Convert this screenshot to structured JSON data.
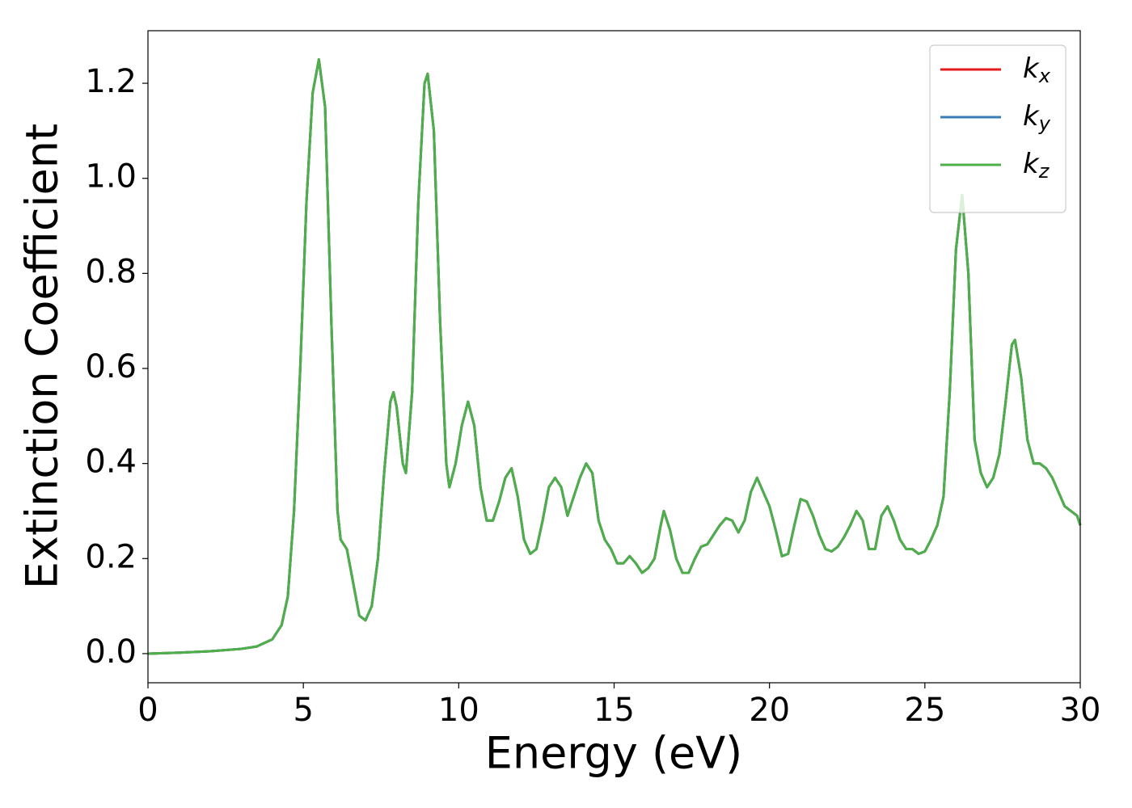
{
  "chart_data": {
    "type": "line",
    "xlabel": "Energy (eV)",
    "ylabel": "Extinction Coefficient",
    "x": [
      0,
      1,
      2,
      3,
      3.5,
      4,
      4.3,
      4.5,
      4.7,
      4.9,
      5.1,
      5.3,
      5.5,
      5.7,
      5.9,
      6.1,
      6.2,
      6.4,
      6.6,
      6.8,
      7.0,
      7.2,
      7.4,
      7.6,
      7.8,
      7.9,
      8.0,
      8.2,
      8.3,
      8.5,
      8.7,
      8.9,
      9.0,
      9.2,
      9.4,
      9.6,
      9.7,
      9.9,
      10.1,
      10.3,
      10.5,
      10.7,
      10.9,
      11.1,
      11.3,
      11.5,
      11.7,
      11.9,
      12.1,
      12.3,
      12.5,
      12.7,
      12.9,
      13.1,
      13.3,
      13.5,
      13.7,
      13.9,
      14.1,
      14.3,
      14.5,
      14.7,
      14.9,
      15.1,
      15.3,
      15.5,
      15.7,
      15.9,
      16.1,
      16.3,
      16.5,
      16.6,
      16.8,
      17.0,
      17.2,
      17.4,
      17.6,
      17.8,
      18.0,
      18.2,
      18.4,
      18.6,
      18.8,
      19.0,
      19.2,
      19.4,
      19.6,
      19.8,
      20.0,
      20.2,
      20.4,
      20.6,
      20.8,
      21.0,
      21.2,
      21.4,
      21.6,
      21.8,
      22.0,
      22.2,
      22.4,
      22.6,
      22.8,
      23.0,
      23.2,
      23.4,
      23.6,
      23.8,
      24.0,
      24.2,
      24.4,
      24.6,
      24.8,
      25.0,
      25.2,
      25.4,
      25.6,
      25.8,
      26.0,
      26.2,
      26.4,
      26.6,
      26.8,
      27.0,
      27.2,
      27.4,
      27.6,
      27.8,
      27.9,
      28.1,
      28.3,
      28.5,
      28.7,
      28.9,
      29.1,
      29.3,
      29.5,
      29.7,
      29.9,
      30.0
    ],
    "series": [
      {
        "name": "kx",
        "color": "#e41a1c",
        "values": [
          0,
          0.002,
          0.005,
          0.01,
          0.015,
          0.03,
          0.06,
          0.12,
          0.3,
          0.6,
          0.95,
          1.18,
          1.25,
          1.15,
          0.7,
          0.3,
          0.24,
          0.22,
          0.15,
          0.08,
          0.07,
          0.1,
          0.2,
          0.38,
          0.53,
          0.55,
          0.52,
          0.4,
          0.38,
          0.55,
          0.95,
          1.2,
          1.22,
          1.1,
          0.7,
          0.4,
          0.35,
          0.4,
          0.48,
          0.53,
          0.48,
          0.35,
          0.28,
          0.28,
          0.32,
          0.37,
          0.39,
          0.33,
          0.24,
          0.21,
          0.22,
          0.28,
          0.35,
          0.37,
          0.35,
          0.29,
          0.33,
          0.37,
          0.4,
          0.38,
          0.28,
          0.24,
          0.22,
          0.19,
          0.19,
          0.205,
          0.19,
          0.17,
          0.18,
          0.2,
          0.27,
          0.3,
          0.26,
          0.2,
          0.17,
          0.17,
          0.2,
          0.225,
          0.23,
          0.25,
          0.27,
          0.285,
          0.28,
          0.255,
          0.28,
          0.34,
          0.37,
          0.34,
          0.31,
          0.26,
          0.205,
          0.21,
          0.27,
          0.325,
          0.32,
          0.29,
          0.25,
          0.22,
          0.215,
          0.225,
          0.245,
          0.27,
          0.3,
          0.28,
          0.22,
          0.22,
          0.29,
          0.31,
          0.28,
          0.24,
          0.22,
          0.22,
          0.21,
          0.215,
          0.24,
          0.27,
          0.33,
          0.55,
          0.85,
          0.965,
          0.8,
          0.45,
          0.38,
          0.35,
          0.37,
          0.42,
          0.53,
          0.65,
          0.66,
          0.58,
          0.45,
          0.4,
          0.4,
          0.39,
          0.37,
          0.34,
          0.31,
          0.3,
          0.29,
          0.27
        ]
      },
      {
        "name": "ky",
        "color": "#377eb8",
        "values": [
          0,
          0.002,
          0.005,
          0.01,
          0.015,
          0.03,
          0.06,
          0.12,
          0.3,
          0.6,
          0.95,
          1.18,
          1.25,
          1.15,
          0.7,
          0.3,
          0.24,
          0.22,
          0.15,
          0.08,
          0.07,
          0.1,
          0.2,
          0.38,
          0.53,
          0.55,
          0.52,
          0.4,
          0.38,
          0.55,
          0.95,
          1.2,
          1.22,
          1.1,
          0.7,
          0.4,
          0.35,
          0.4,
          0.48,
          0.53,
          0.48,
          0.35,
          0.28,
          0.28,
          0.32,
          0.37,
          0.39,
          0.33,
          0.24,
          0.21,
          0.22,
          0.28,
          0.35,
          0.37,
          0.35,
          0.29,
          0.33,
          0.37,
          0.4,
          0.38,
          0.28,
          0.24,
          0.22,
          0.19,
          0.19,
          0.205,
          0.19,
          0.17,
          0.18,
          0.2,
          0.27,
          0.3,
          0.26,
          0.2,
          0.17,
          0.17,
          0.2,
          0.225,
          0.23,
          0.25,
          0.27,
          0.285,
          0.28,
          0.255,
          0.28,
          0.34,
          0.37,
          0.34,
          0.31,
          0.26,
          0.205,
          0.21,
          0.27,
          0.325,
          0.32,
          0.29,
          0.25,
          0.22,
          0.215,
          0.225,
          0.245,
          0.27,
          0.3,
          0.28,
          0.22,
          0.22,
          0.29,
          0.31,
          0.28,
          0.24,
          0.22,
          0.22,
          0.21,
          0.215,
          0.24,
          0.27,
          0.33,
          0.55,
          0.85,
          0.965,
          0.8,
          0.45,
          0.38,
          0.35,
          0.37,
          0.42,
          0.53,
          0.65,
          0.66,
          0.58,
          0.45,
          0.4,
          0.4,
          0.39,
          0.37,
          0.34,
          0.31,
          0.3,
          0.29,
          0.27
        ]
      },
      {
        "name": "kz",
        "color": "#4daf4a",
        "values": [
          0,
          0.002,
          0.005,
          0.01,
          0.015,
          0.03,
          0.06,
          0.12,
          0.3,
          0.6,
          0.95,
          1.18,
          1.25,
          1.15,
          0.7,
          0.3,
          0.24,
          0.22,
          0.15,
          0.08,
          0.07,
          0.1,
          0.2,
          0.38,
          0.53,
          0.55,
          0.52,
          0.4,
          0.38,
          0.55,
          0.95,
          1.2,
          1.22,
          1.1,
          0.7,
          0.4,
          0.35,
          0.4,
          0.48,
          0.53,
          0.48,
          0.35,
          0.28,
          0.28,
          0.32,
          0.37,
          0.39,
          0.33,
          0.24,
          0.21,
          0.22,
          0.28,
          0.35,
          0.37,
          0.35,
          0.29,
          0.33,
          0.37,
          0.4,
          0.38,
          0.28,
          0.24,
          0.22,
          0.19,
          0.19,
          0.205,
          0.19,
          0.17,
          0.18,
          0.2,
          0.27,
          0.3,
          0.26,
          0.2,
          0.17,
          0.17,
          0.2,
          0.225,
          0.23,
          0.25,
          0.27,
          0.285,
          0.28,
          0.255,
          0.28,
          0.34,
          0.37,
          0.34,
          0.31,
          0.26,
          0.205,
          0.21,
          0.27,
          0.325,
          0.32,
          0.29,
          0.25,
          0.22,
          0.215,
          0.225,
          0.245,
          0.27,
          0.3,
          0.28,
          0.22,
          0.22,
          0.29,
          0.31,
          0.28,
          0.24,
          0.22,
          0.22,
          0.21,
          0.215,
          0.24,
          0.27,
          0.33,
          0.55,
          0.85,
          0.965,
          0.8,
          0.45,
          0.38,
          0.35,
          0.37,
          0.42,
          0.53,
          0.65,
          0.66,
          0.58,
          0.45,
          0.4,
          0.4,
          0.39,
          0.37,
          0.34,
          0.31,
          0.3,
          0.29,
          0.27
        ]
      }
    ],
    "xlim": [
      0,
      30
    ],
    "xticks": [
      0,
      5,
      10,
      15,
      20,
      25,
      30
    ],
    "ylim": [
      -0.0613,
      1.3106
    ],
    "yticks": [
      {
        "value": 0,
        "label": "0.0"
      },
      {
        "value": 0.2,
        "label": "0.2"
      },
      {
        "value": 0.4,
        "label": "0.4"
      },
      {
        "value": 0.6,
        "label": "0.6"
      },
      {
        "value": 0.8,
        "label": "0.8"
      },
      {
        "value": 1.0,
        "label": "1.0"
      },
      {
        "value": 1.2,
        "label": "1.2"
      }
    ],
    "grid": false,
    "legend": "upper right"
  }
}
